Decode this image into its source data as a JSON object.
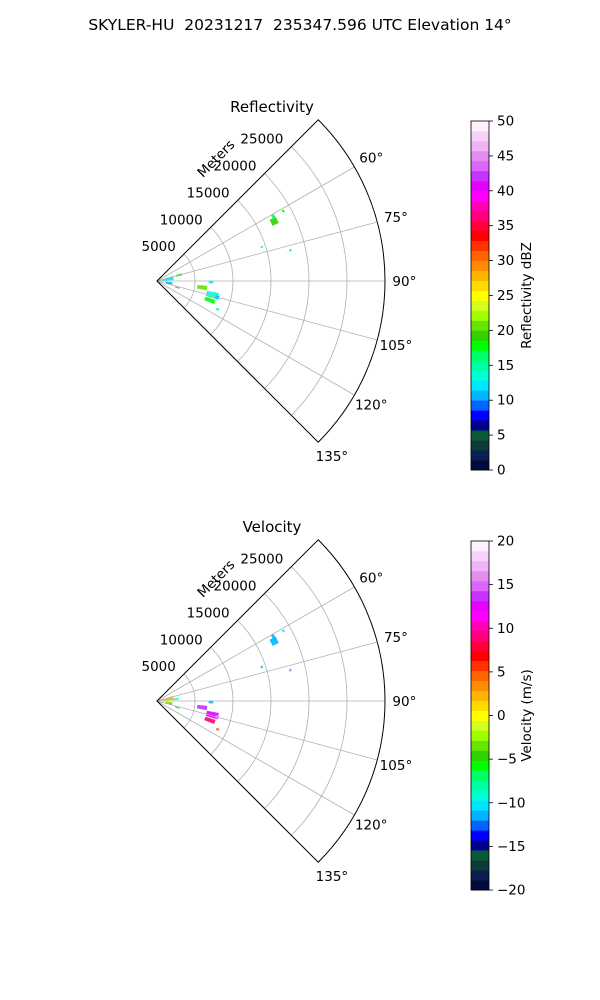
{
  "title": "SKYLER-HU  20231217  235347.596 UTC Elevation 14°",
  "chart_data": [
    {
      "type": "heatmap",
      "projection": "polar-sector",
      "title": "Reflectivity",
      "range_label": "Meters",
      "theta_range_deg": [
        45,
        135
      ],
      "r_range": [
        0,
        30000
      ],
      "r_ticks": [
        5000,
        10000,
        15000,
        20000,
        25000
      ],
      "theta_ticks": [
        "60°",
        "75°",
        "90°",
        "105°",
        "120°",
        "135°"
      ],
      "theta_tick_values": [
        60,
        75,
        90,
        105,
        120,
        135
      ],
      "grid": true,
      "colorbar": {
        "label": "Reflectivity dBZ",
        "vmin": 0,
        "vmax": 50,
        "ticks": [
          "0",
          "5",
          "10",
          "15",
          "20",
          "25",
          "30",
          "35",
          "40",
          "45",
          "50"
        ],
        "colors": [
          "#000a3c",
          "#0a2050",
          "#0f3a3a",
          "#0a5a3a",
          "#00008c",
          "#0000ff",
          "#0064ff",
          "#00b4ff",
          "#00e6ff",
          "#00ffd2",
          "#00ffa0",
          "#00ff64",
          "#00ff00",
          "#32d200",
          "#64e600",
          "#a0ff00",
          "#d2ff1e",
          "#ffff00",
          "#ffdc00",
          "#ffb400",
          "#ff8c00",
          "#ff6400",
          "#ff3200",
          "#ff0000",
          "#ff003c",
          "#ff0078",
          "#ff00b4",
          "#ff00ff",
          "#e600ff",
          "#c832ff",
          "#dc64ff",
          "#e68cf0",
          "#f0b4f5",
          "#f5d2fa",
          "#fff0ff"
        ]
      },
      "echoes": [
        {
          "r": 1400,
          "theta": 80,
          "dr": 1600,
          "dth": 14,
          "value": 12
        },
        {
          "r": 3000,
          "theta": 75,
          "dr": 800,
          "dth": 5,
          "value": 18
        },
        {
          "r": 1600,
          "theta": 100,
          "dr": 900,
          "dth": 10,
          "value": 11
        },
        {
          "r": 2800,
          "theta": 108,
          "dr": 600,
          "dth": 3,
          "value": 19
        },
        {
          "r": 6000,
          "theta": 98,
          "dr": 1300,
          "dth": 5,
          "value": 20
        },
        {
          "r": 7500,
          "theta": 104,
          "dr": 1600,
          "dth": 6,
          "value": 14
        },
        {
          "r": 7400,
          "theta": 110,
          "dr": 1400,
          "dth": 4,
          "value": 18
        },
        {
          "r": 7100,
          "theta": 91,
          "dr": 600,
          "dth": 3,
          "value": 12
        },
        {
          "r": 8200,
          "theta": 105,
          "dr": 500,
          "dth": 3,
          "value": 11
        },
        {
          "r": 8800,
          "theta": 115,
          "dr": 400,
          "dth": 2,
          "value": 14
        },
        {
          "r": 17300,
          "theta": 63,
          "dr": 900,
          "dth": 3,
          "value": 19
        },
        {
          "r": 17500,
          "theta": 61,
          "dr": 400,
          "dth": 2,
          "value": 17
        },
        {
          "r": 19000,
          "theta": 61,
          "dr": 300,
          "dth": 1,
          "value": 18
        },
        {
          "r": 14500,
          "theta": 72,
          "dr": 300,
          "dth": 1,
          "value": 13
        },
        {
          "r": 18000,
          "theta": 77,
          "dr": 300,
          "dth": 1,
          "value": 12
        }
      ]
    },
    {
      "type": "heatmap",
      "projection": "polar-sector",
      "title": "Velocity",
      "range_label": "Meters",
      "theta_range_deg": [
        45,
        135
      ],
      "r_range": [
        0,
        30000
      ],
      "r_ticks": [
        5000,
        10000,
        15000,
        20000,
        25000
      ],
      "theta_ticks": [
        "60°",
        "75°",
        "90°",
        "105°",
        "120°",
        "135°"
      ],
      "theta_tick_values": [
        60,
        75,
        90,
        105,
        120,
        135
      ],
      "grid": true,
      "colorbar": {
        "label": "Velocity (m/s)",
        "vmin": -20,
        "vmax": 20,
        "ticks": [
          "−20",
          "−15",
          "−10",
          "−5",
          "0",
          "5",
          "10",
          "15",
          "20"
        ],
        "colors": [
          "#000a3c",
          "#0a2050",
          "#0f3a3a",
          "#0a5a3a",
          "#00008c",
          "#0000ff",
          "#0064ff",
          "#00b4ff",
          "#00e6ff",
          "#00ffd2",
          "#00ffa0",
          "#00ff64",
          "#00ff00",
          "#32d200",
          "#64e600",
          "#a0ff00",
          "#d2ff1e",
          "#ffff00",
          "#ffdc00",
          "#ffb400",
          "#ff8c00",
          "#ff6400",
          "#ff3200",
          "#ff0000",
          "#ff003c",
          "#ff0078",
          "#ff00b4",
          "#ff00ff",
          "#e600ff",
          "#c832ff",
          "#dc64ff",
          "#e68cf0",
          "#f0b4f5",
          "#f5d2fa",
          "#fff0ff"
        ]
      },
      "echoes": [
        {
          "r": 1400,
          "theta": 80,
          "dr": 1600,
          "dth": 14,
          "value": 2
        },
        {
          "r": 2500,
          "theta": 84,
          "dr": 800,
          "dth": 5,
          "value": -9
        },
        {
          "r": 1600,
          "theta": 100,
          "dr": 900,
          "dth": 10,
          "value": -4
        },
        {
          "r": 2800,
          "theta": 108,
          "dr": 600,
          "dth": 3,
          "value": -6
        },
        {
          "r": 6000,
          "theta": 98,
          "dr": 1300,
          "dth": 5,
          "value": 14
        },
        {
          "r": 7500,
          "theta": 104,
          "dr": 1600,
          "dth": 6,
          "value": 13
        },
        {
          "r": 7400,
          "theta": 110,
          "dr": 1400,
          "dth": 4,
          "value": 9
        },
        {
          "r": 7100,
          "theta": 91,
          "dr": 600,
          "dth": 3,
          "value": -11
        },
        {
          "r": 8200,
          "theta": 105,
          "dr": 500,
          "dth": 3,
          "value": 16
        },
        {
          "r": 8800,
          "theta": 115,
          "dr": 400,
          "dth": 2,
          "value": 5
        },
        {
          "r": 17300,
          "theta": 63,
          "dr": 900,
          "dth": 3,
          "value": -11
        },
        {
          "r": 17500,
          "theta": 61,
          "dr": 400,
          "dth": 2,
          "value": -12
        },
        {
          "r": 19000,
          "theta": 61,
          "dr": 300,
          "dth": 1,
          "value": -10
        },
        {
          "r": 14500,
          "theta": 72,
          "dr": 300,
          "dth": 1,
          "value": -12
        },
        {
          "r": 18000,
          "theta": 77,
          "dr": 300,
          "dth": 1,
          "value": 15
        }
      ]
    }
  ]
}
